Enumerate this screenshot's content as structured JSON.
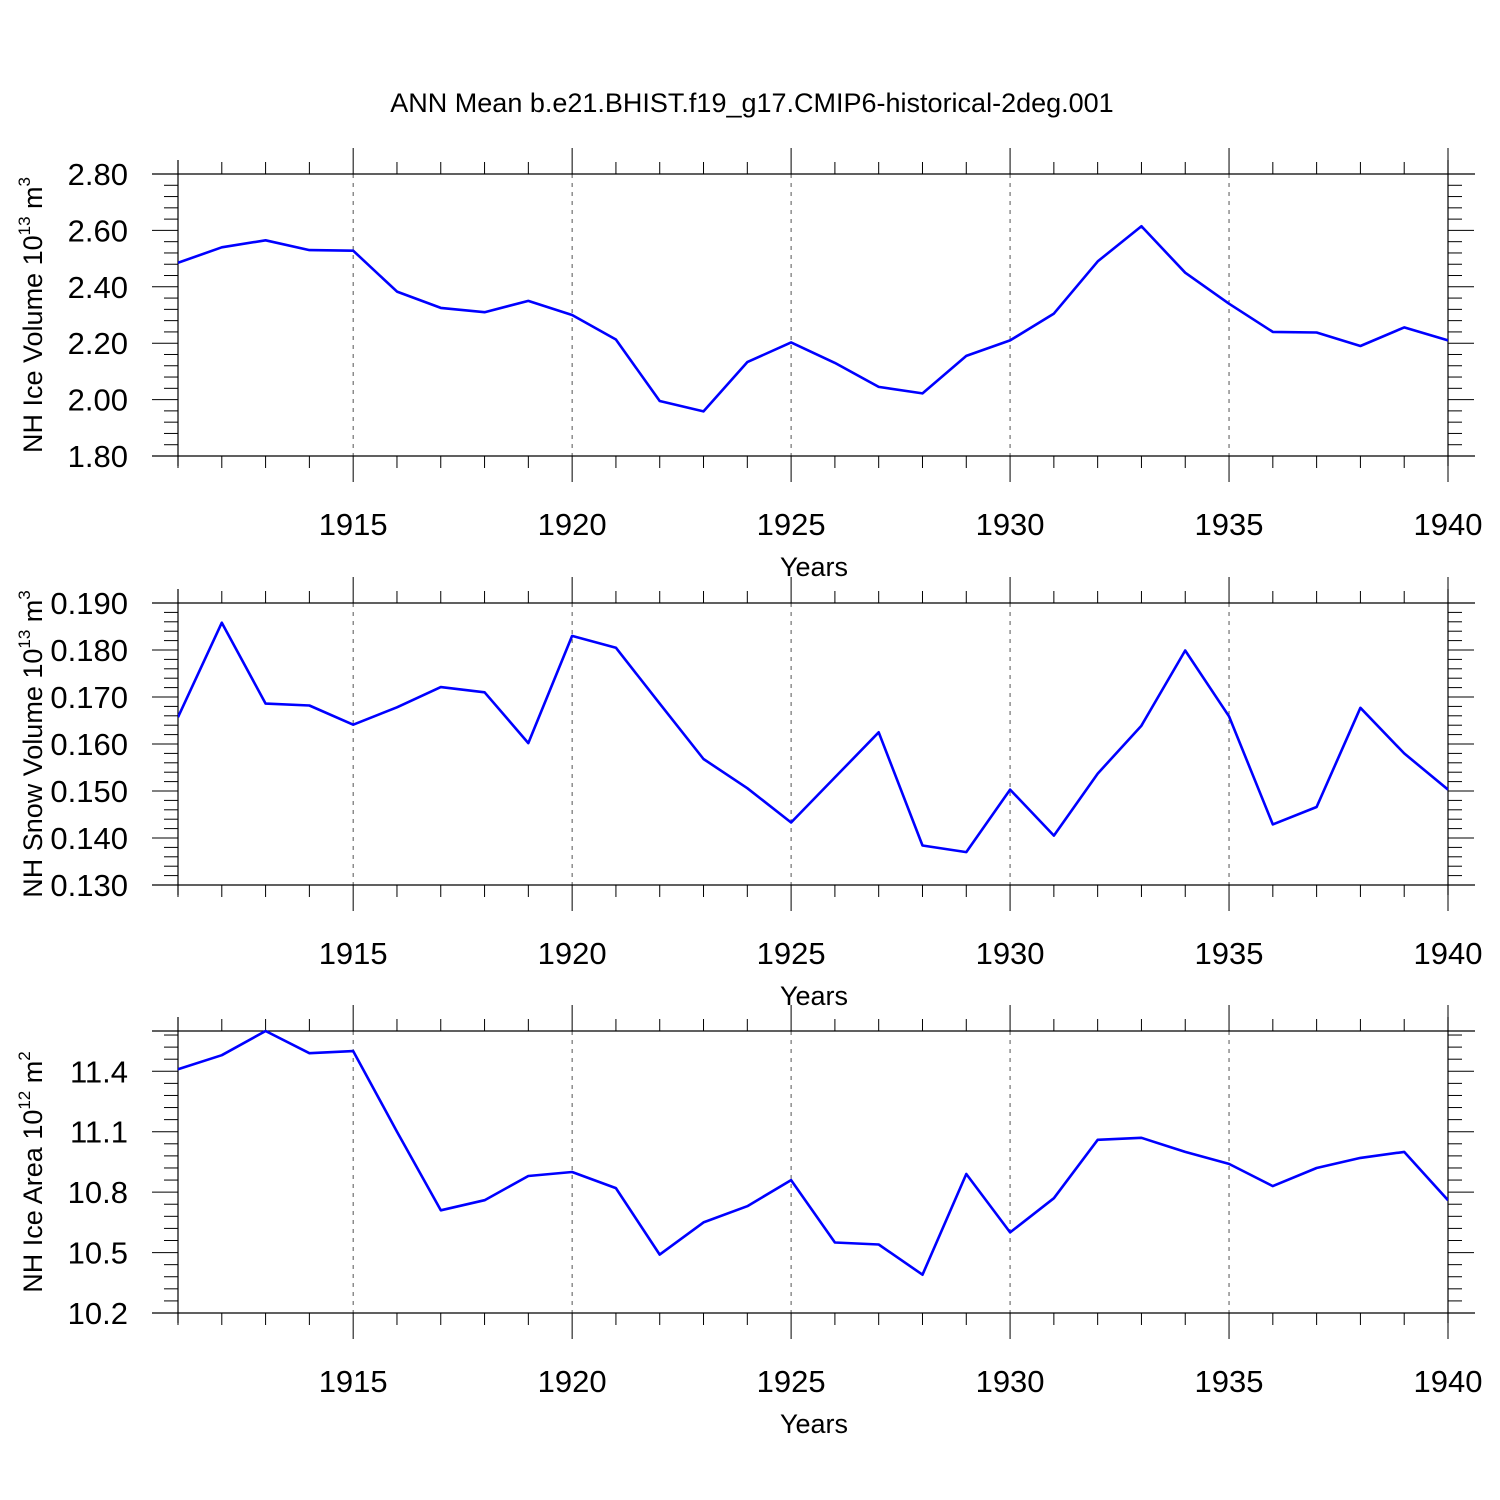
{
  "figure": {
    "title": "ANN Mean b.e21.BHIST.f19_g17.CMIP6-historical-2deg.001",
    "line_color": "#0000ff"
  },
  "chart_data": [
    {
      "type": "line",
      "id": "ice-volume",
      "ylabel": {
        "base": "NH Ice Volume 10",
        "exp": "13",
        "unit": " m",
        "unit_exp": "3"
      },
      "xlabel": "Years",
      "xlim": [
        1911,
        1940
      ],
      "ylim": [
        1.8,
        2.8
      ],
      "yticks": [
        1.8,
        2.0,
        2.2,
        2.4,
        2.6,
        2.8
      ],
      "ytick_labels": [
        "1.80",
        "2.00",
        "2.20",
        "2.40",
        "2.60",
        "2.80"
      ],
      "xticks": [
        1915,
        1920,
        1925,
        1930,
        1935,
        1940
      ],
      "xtick_labels": [
        "1915",
        "1920",
        "1925",
        "1930",
        "1935",
        "1940"
      ],
      "grid": "vertical-dashed",
      "x": [
        1911,
        1912,
        1913,
        1914,
        1915,
        1916,
        1917,
        1918,
        1919,
        1920,
        1921,
        1922,
        1923,
        1924,
        1925,
        1926,
        1927,
        1928,
        1929,
        1930,
        1931,
        1932,
        1933,
        1934,
        1935,
        1936,
        1937,
        1938,
        1939,
        1940
      ],
      "y": [
        2.485,
        2.54,
        2.565,
        2.53,
        2.528,
        2.383,
        2.325,
        2.31,
        2.35,
        2.3,
        2.213,
        1.995,
        1.958,
        2.133,
        2.203,
        2.13,
        2.045,
        2.022,
        2.155,
        2.21,
        2.305,
        2.49,
        2.615,
        2.45,
        2.34,
        2.24,
        2.238,
        2.19,
        2.256,
        2.21
      ]
    },
    {
      "type": "line",
      "id": "snow-volume",
      "ylabel": {
        "base": "NH Snow Volume 10",
        "exp": "13",
        "unit": " m",
        "unit_exp": "3"
      },
      "xlabel": "Years",
      "xlim": [
        1911,
        1940
      ],
      "ylim": [
        0.13,
        0.19
      ],
      "yticks": [
        0.13,
        0.14,
        0.15,
        0.16,
        0.17,
        0.18,
        0.19
      ],
      "ytick_labels": [
        "0.130",
        "0.140",
        "0.150",
        "0.160",
        "0.170",
        "0.180",
        "0.190"
      ],
      "xticks": [
        1915,
        1920,
        1925,
        1930,
        1935,
        1940
      ],
      "xtick_labels": [
        "1915",
        "1920",
        "1925",
        "1930",
        "1935",
        "1940"
      ],
      "grid": "vertical-dashed",
      "x": [
        1911,
        1912,
        1913,
        1914,
        1915,
        1916,
        1917,
        1918,
        1919,
        1920,
        1921,
        1922,
        1923,
        1924,
        1925,
        1926,
        1927,
        1928,
        1929,
        1930,
        1931,
        1932,
        1933,
        1934,
        1935,
        1936,
        1937,
        1938,
        1939,
        1940
      ],
      "y": [
        0.1657,
        0.1858,
        0.1686,
        0.1682,
        0.1641,
        0.1678,
        0.1721,
        0.171,
        0.1602,
        0.183,
        0.1805,
        0.1686,
        0.1568,
        0.1506,
        0.1433,
        0.1529,
        0.1625,
        0.1384,
        0.137,
        0.1503,
        0.1405,
        0.1537,
        0.1639,
        0.1799,
        0.1659,
        0.1429,
        0.1466,
        0.1677,
        0.158,
        0.1503
      ]
    },
    {
      "type": "line",
      "id": "ice-area",
      "ylabel": {
        "base": "NH Ice Area 10",
        "exp": "12",
        "unit": " m",
        "unit_exp": "2"
      },
      "xlabel": "Years",
      "xlim": [
        1911,
        1940
      ],
      "ylim": [
        10.2,
        11.6
      ],
      "yticks": [
        10.2,
        10.5,
        10.8,
        11.1,
        11.4
      ],
      "ytick_labels": [
        "10.2",
        "10.5",
        "10.8",
        "11.1",
        "11.4"
      ],
      "xticks": [
        1915,
        1920,
        1925,
        1930,
        1935,
        1940
      ],
      "xtick_labels": [
        "1915",
        "1920",
        "1925",
        "1930",
        "1935",
        "1940"
      ],
      "grid": "vertical-dashed",
      "x": [
        1911,
        1912,
        1913,
        1914,
        1915,
        1916,
        1917,
        1918,
        1919,
        1920,
        1921,
        1922,
        1923,
        1924,
        1925,
        1926,
        1927,
        1928,
        1929,
        1930,
        1931,
        1932,
        1933,
        1934,
        1935,
        1936,
        1937,
        1938,
        1939,
        1940
      ],
      "y": [
        11.41,
        11.48,
        11.6,
        11.49,
        11.5,
        11.1,
        10.71,
        10.76,
        10.88,
        10.9,
        10.82,
        10.49,
        10.65,
        10.73,
        10.86,
        10.55,
        10.54,
        10.39,
        10.89,
        10.6,
        10.77,
        11.06,
        11.07,
        11.0,
        10.94,
        10.83,
        10.92,
        10.97,
        11.0,
        10.76
      ]
    }
  ]
}
